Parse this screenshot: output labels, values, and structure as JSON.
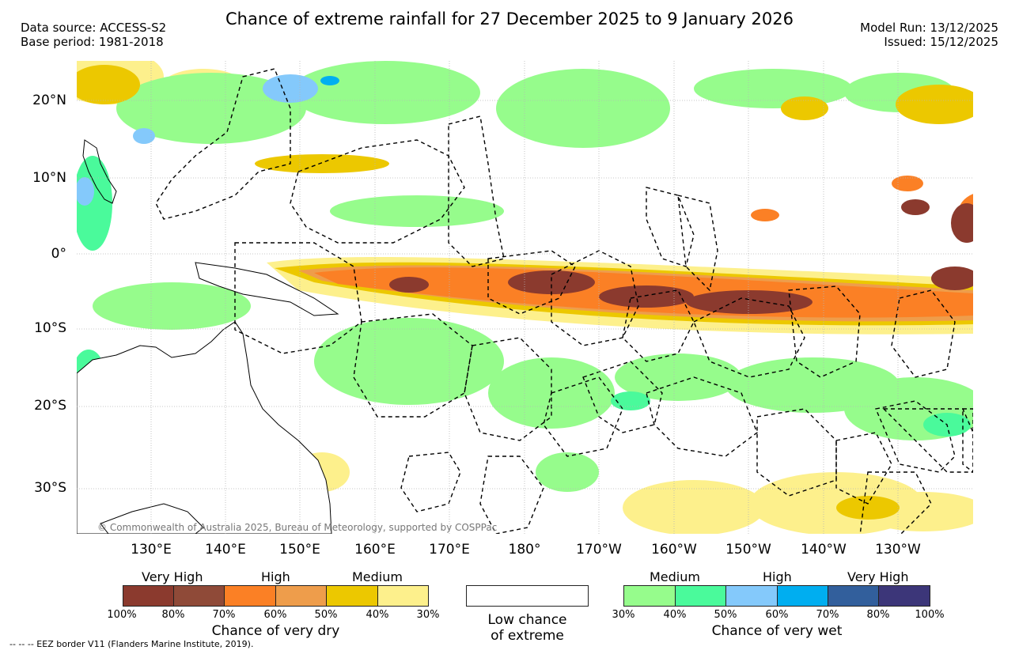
{
  "header": {
    "title": "Chance of extreme rainfall for 27 December 2025 to 9 January 2026",
    "data_source": "Data source: ACCESS-S2",
    "base_period": "Base period: 1981-2018",
    "model_run": "Model Run: 13/12/2025",
    "issued": "Issued: 15/12/2025"
  },
  "map": {
    "lat_labels": [
      "20°N",
      "10°N",
      "0°",
      "10°S",
      "20°S",
      "30°S"
    ],
    "lon_labels": [
      "130°E",
      "140°E",
      "150°E",
      "160°E",
      "170°E",
      "180°",
      "170°W",
      "160°W",
      "150°W",
      "140°W",
      "130°W"
    ],
    "copyright": "© Commonwealth of Australia 2025, Bureau of Meteorology, supported by COSPPac"
  },
  "legend": {
    "dry": {
      "categories": [
        "Very High",
        "High",
        "Medium"
      ],
      "ticks": [
        "100%",
        "80%",
        "70%",
        "60%",
        "50%",
        "40%",
        "30%"
      ],
      "colors": [
        "#8b3a2e",
        "#8f4a38",
        "#fb8025",
        "#ee9d4b",
        "#ecc800",
        "#fdf08c"
      ],
      "caption": "Chance of very dry"
    },
    "low": {
      "caption_line1": "Low chance",
      "caption_line2": "of extreme"
    },
    "wet": {
      "categories": [
        "Medium",
        "High",
        "Very High"
      ],
      "ticks": [
        "30%",
        "40%",
        "50%",
        "60%",
        "70%",
        "80%",
        "100%"
      ],
      "colors": [
        "#96fc8c",
        "#4afa9b",
        "#84c9fb",
        "#00aef0",
        "#325f9c",
        "#3c3679"
      ],
      "caption": "Chance of very wet"
    },
    "eez_note": "-- -- -- EEZ border V11 (Flanders Marine Institute, 2019)."
  },
  "colors": {
    "grid": "#b5b5b5",
    "land_line": "#000000"
  }
}
